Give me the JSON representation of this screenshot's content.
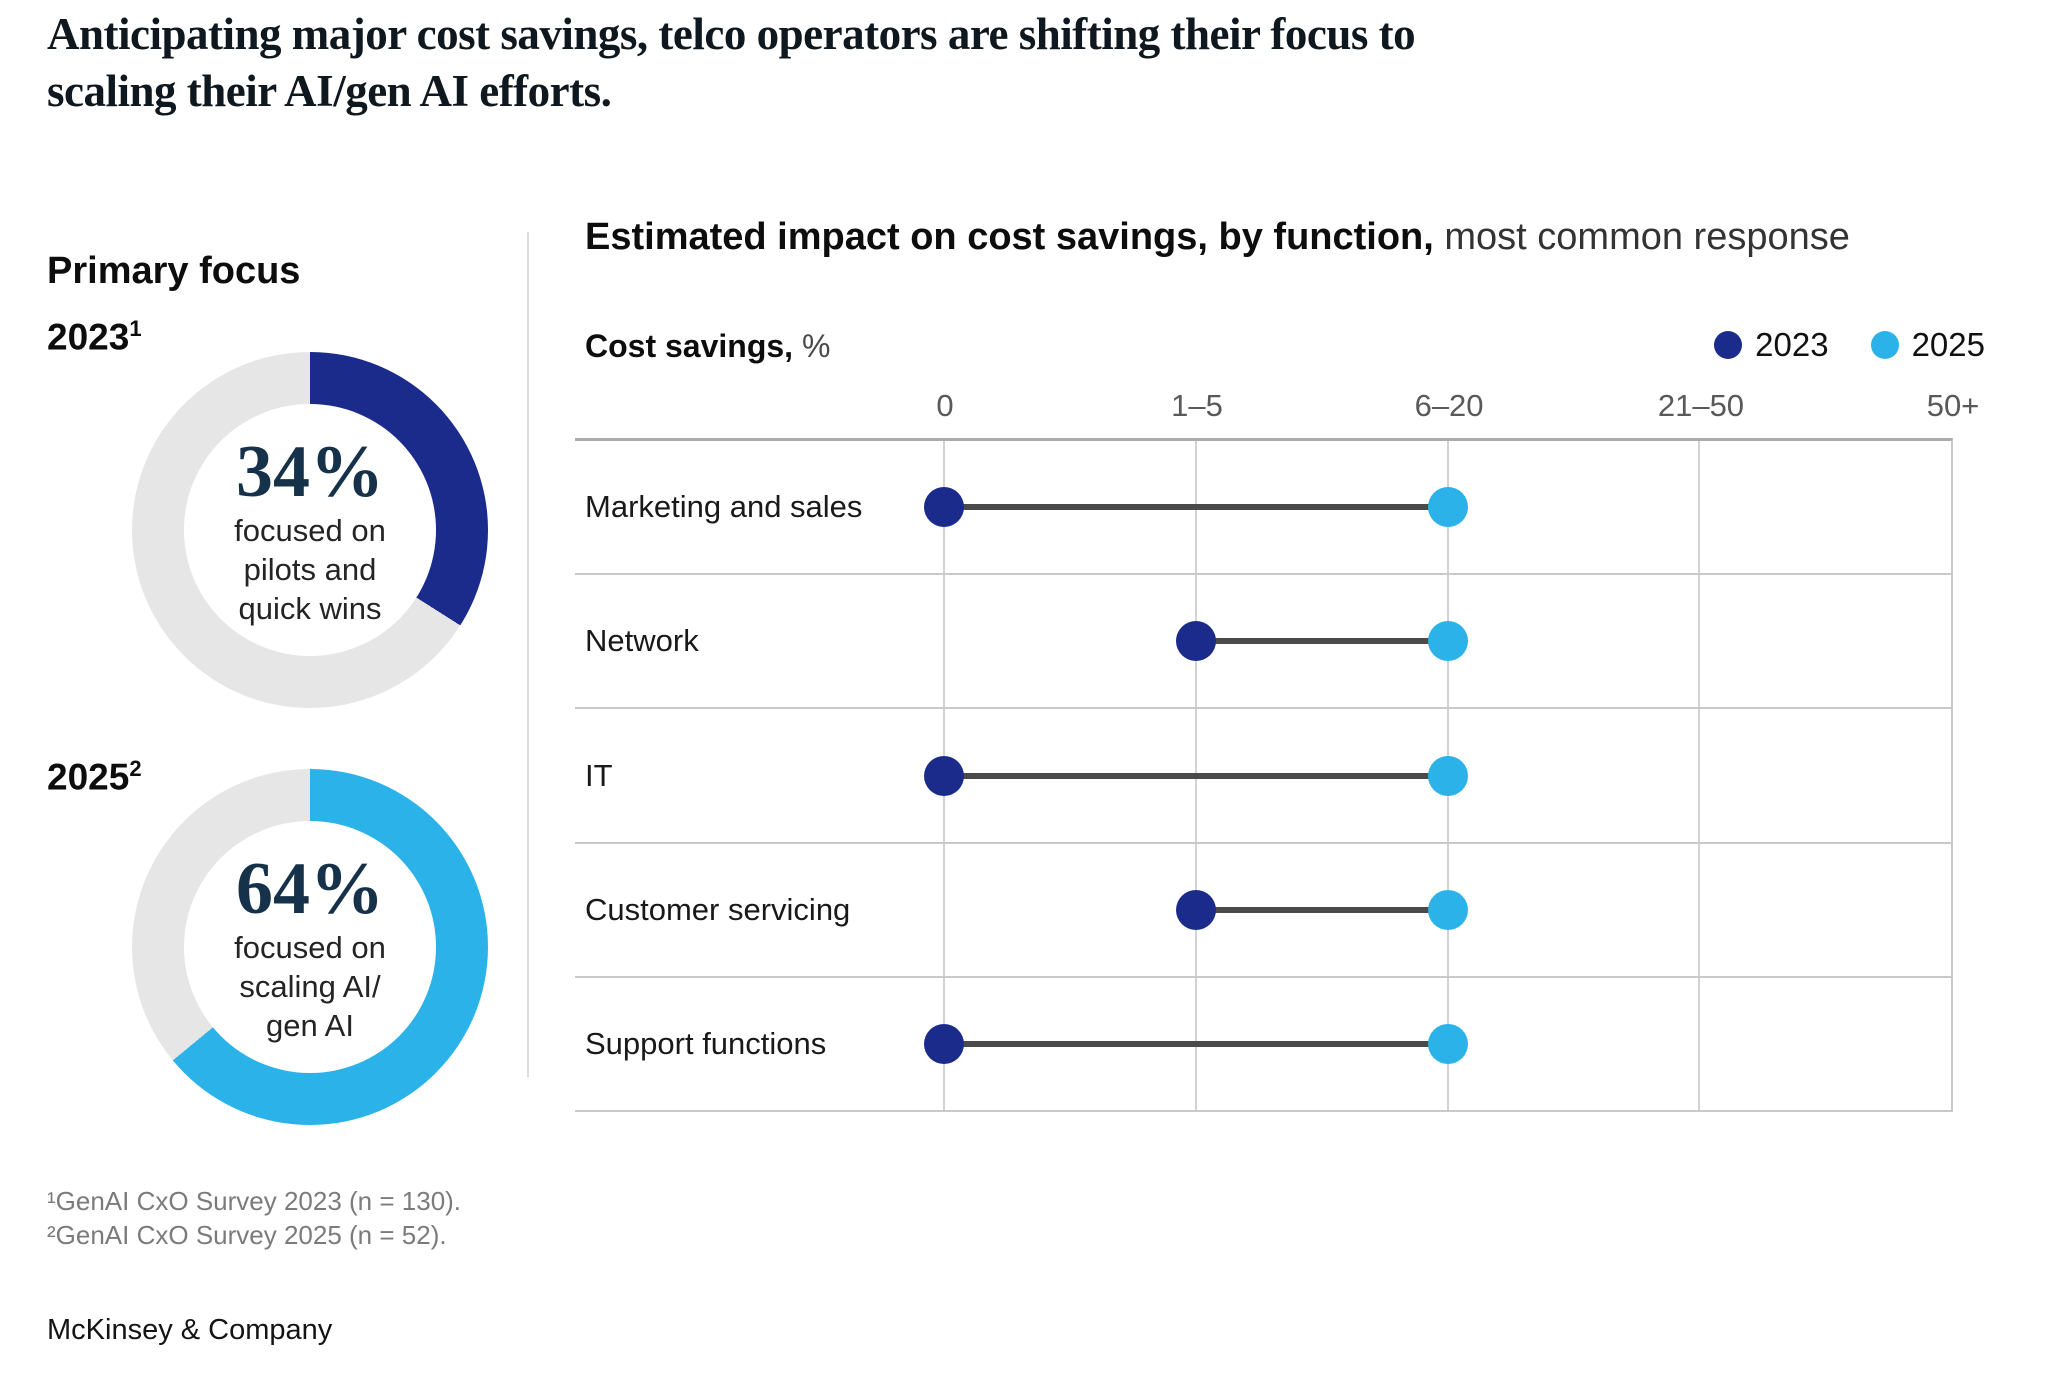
{
  "title": {
    "line1": "Anticipating major cost savings, telco operators are shifting their focus to",
    "line2": "scaling their AI/gen AI efforts."
  },
  "left_panel": {
    "heading": "Primary focus"
  },
  "chart_data": [
    {
      "type": "donut",
      "year": "2023",
      "footnote_marker": "1",
      "value_pct": 34,
      "center_label": "34%",
      "caption_lines": [
        "focused on",
        "pilots and",
        "quick wins"
      ],
      "color": "#1B2B8C",
      "track_color": "#E6E6E6"
    },
    {
      "type": "donut",
      "year": "2025",
      "footnote_marker": "2",
      "value_pct": 64,
      "center_label": "64%",
      "caption_lines": [
        "focused on",
        "scaling AI/",
        "gen AI"
      ],
      "color": "#2BB2E9",
      "track_color": "#E6E6E6"
    },
    {
      "type": "dumbbell",
      "title_bold": "Estimated impact on cost savings, by function,",
      "title_regular": "most common response",
      "axis_label_bold": "Cost savings,",
      "axis_label_unit": "%",
      "x_ticks": [
        "0",
        "1–5",
        "6–20",
        "21–50",
        "50+"
      ],
      "categories": [
        "Marketing and sales",
        "Network",
        "IT",
        "Customer servicing",
        "Support functions"
      ],
      "series": [
        {
          "name": "2023",
          "color": "#1B2B8C",
          "values": [
            "0",
            "1–5",
            "0",
            "1–5",
            "0"
          ]
        },
        {
          "name": "2025",
          "color": "#2BB2E9",
          "values": [
            "6–20",
            "6–20",
            "6–20",
            "6–20",
            "6–20"
          ]
        }
      ],
      "legend_position": "top-right",
      "grid": "on"
    }
  ],
  "footnotes": [
    "¹GenAI CxO Survey 2023 (n = 130).",
    "²GenAI CxO Survey 2025 (n = 52)."
  ],
  "source": "McKinsey & Company"
}
